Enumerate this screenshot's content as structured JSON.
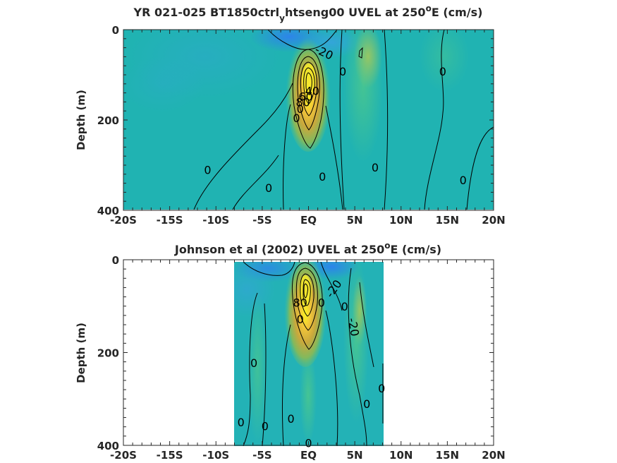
{
  "chart_data": [
    {
      "type": "contour",
      "title": {
        "main": "YR 021-025 BT1850ctrl",
        "sub": "y",
        "rest": "htseng00 UVEL at 250",
        "sup": "o",
        "tail": "E (cm/s)"
      },
      "ylabel": "Depth (m)",
      "xlim": [
        -20,
        20
      ],
      "ylim": [
        0,
        400
      ],
      "y_reversed": true,
      "x_ticks": [
        -20,
        -15,
        -10,
        -5,
        0,
        5,
        10,
        15,
        20
      ],
      "x_tick_labels": [
        "-20S",
        "-15S",
        "-10S",
        "-5S",
        "EQ",
        "5N",
        "10N",
        "15N",
        "20N"
      ],
      "y_ticks": [
        0,
        200,
        400
      ],
      "y_tick_labels": [
        "0",
        "200",
        "400"
      ],
      "data_extent": {
        "x": [
          -20,
          20
        ],
        "y": [
          0,
          395
        ]
      },
      "contour_interval": 20,
      "undercurrent_core": {
        "lon": 0,
        "depth": 110,
        "max_speed": 100
      },
      "contour_labels": [
        {
          "text": "-20",
          "lon": 1.7,
          "depth": 50,
          "angle": 25
        },
        {
          "text": "0",
          "lon": 3.7,
          "depth": 92,
          "angle": 0
        },
        {
          "text": "0",
          "lon": 14.5,
          "depth": 92,
          "angle": 0
        },
        {
          "text": "40",
          "lon": 0.4,
          "depth": 135,
          "angle": 0
        },
        {
          "text": "60",
          "lon": -0.3,
          "depth": 148,
          "angle": 0
        },
        {
          "text": "80",
          "lon": -0.6,
          "depth": 160,
          "angle": 0
        },
        {
          "text": "0",
          "lon": -0.9,
          "depth": 175,
          "angle": 0
        },
        {
          "text": "0",
          "lon": -1.3,
          "depth": 195,
          "angle": 0
        },
        {
          "text": "0",
          "lon": -10.9,
          "depth": 310,
          "angle": 0
        },
        {
          "text": "0",
          "lon": 1.5,
          "depth": 325,
          "angle": 0
        },
        {
          "text": "0",
          "lon": 7.2,
          "depth": 305,
          "angle": 0
        },
        {
          "text": "0",
          "lon": 16.7,
          "depth": 333,
          "angle": 0
        },
        {
          "text": "0",
          "lon": -4.3,
          "depth": 350,
          "angle": 0
        }
      ]
    },
    {
      "type": "contour",
      "title": {
        "main": "Johnson et al (2002) UVEL at 250",
        "sup": "o",
        "tail": "E (cm/s)"
      },
      "ylabel": "Depth (m)",
      "xlim": [
        -20,
        20
      ],
      "ylim": [
        0,
        400
      ],
      "y_reversed": true,
      "x_ticks": [
        -20,
        -15,
        -10,
        -5,
        0,
        5,
        10,
        15,
        20
      ],
      "x_tick_labels": [
        "-20S",
        "-15S",
        "-10S",
        "-5S",
        "EQ",
        "5N",
        "10N",
        "15N",
        "20N"
      ],
      "y_ticks": [
        0,
        200,
        400
      ],
      "y_tick_labels": [
        "0",
        "200",
        "400"
      ],
      "data_extent": {
        "x": [
          -8,
          8.2
        ],
        "y": [
          5,
          400
        ]
      },
      "contour_interval": 20,
      "undercurrent_core": {
        "lon": -0.3,
        "depth": 75,
        "max_speed": 100
      },
      "contour_labels": [
        {
          "text": "-20",
          "lon": 2.7,
          "depth": 62,
          "angle": -55
        },
        {
          "text": "80",
          "lon": -0.9,
          "depth": 92,
          "angle": 0
        },
        {
          "text": "0",
          "lon": 1.4,
          "depth": 92,
          "angle": 0
        },
        {
          "text": "0",
          "lon": 3.9,
          "depth": 100,
          "angle": 0
        },
        {
          "text": "0",
          "lon": -0.9,
          "depth": 128,
          "angle": 0
        },
        {
          "text": "-20",
          "lon": 4.9,
          "depth": 145,
          "angle": 80
        },
        {
          "text": "0",
          "lon": -5.9,
          "depth": 222,
          "angle": 0
        },
        {
          "text": "0",
          "lon": 7.9,
          "depth": 277,
          "angle": 0
        },
        {
          "text": "0",
          "lon": 6.3,
          "depth": 310,
          "angle": 0
        },
        {
          "text": "0",
          "lon": -1.9,
          "depth": 342,
          "angle": 0
        },
        {
          "text": "0",
          "lon": -7.3,
          "depth": 350,
          "angle": 0
        },
        {
          "text": "0",
          "lon": -4.7,
          "depth": 358,
          "angle": 0
        },
        {
          "text": "0",
          "lon": 0,
          "depth": 395,
          "angle": 0
        }
      ]
    }
  ]
}
